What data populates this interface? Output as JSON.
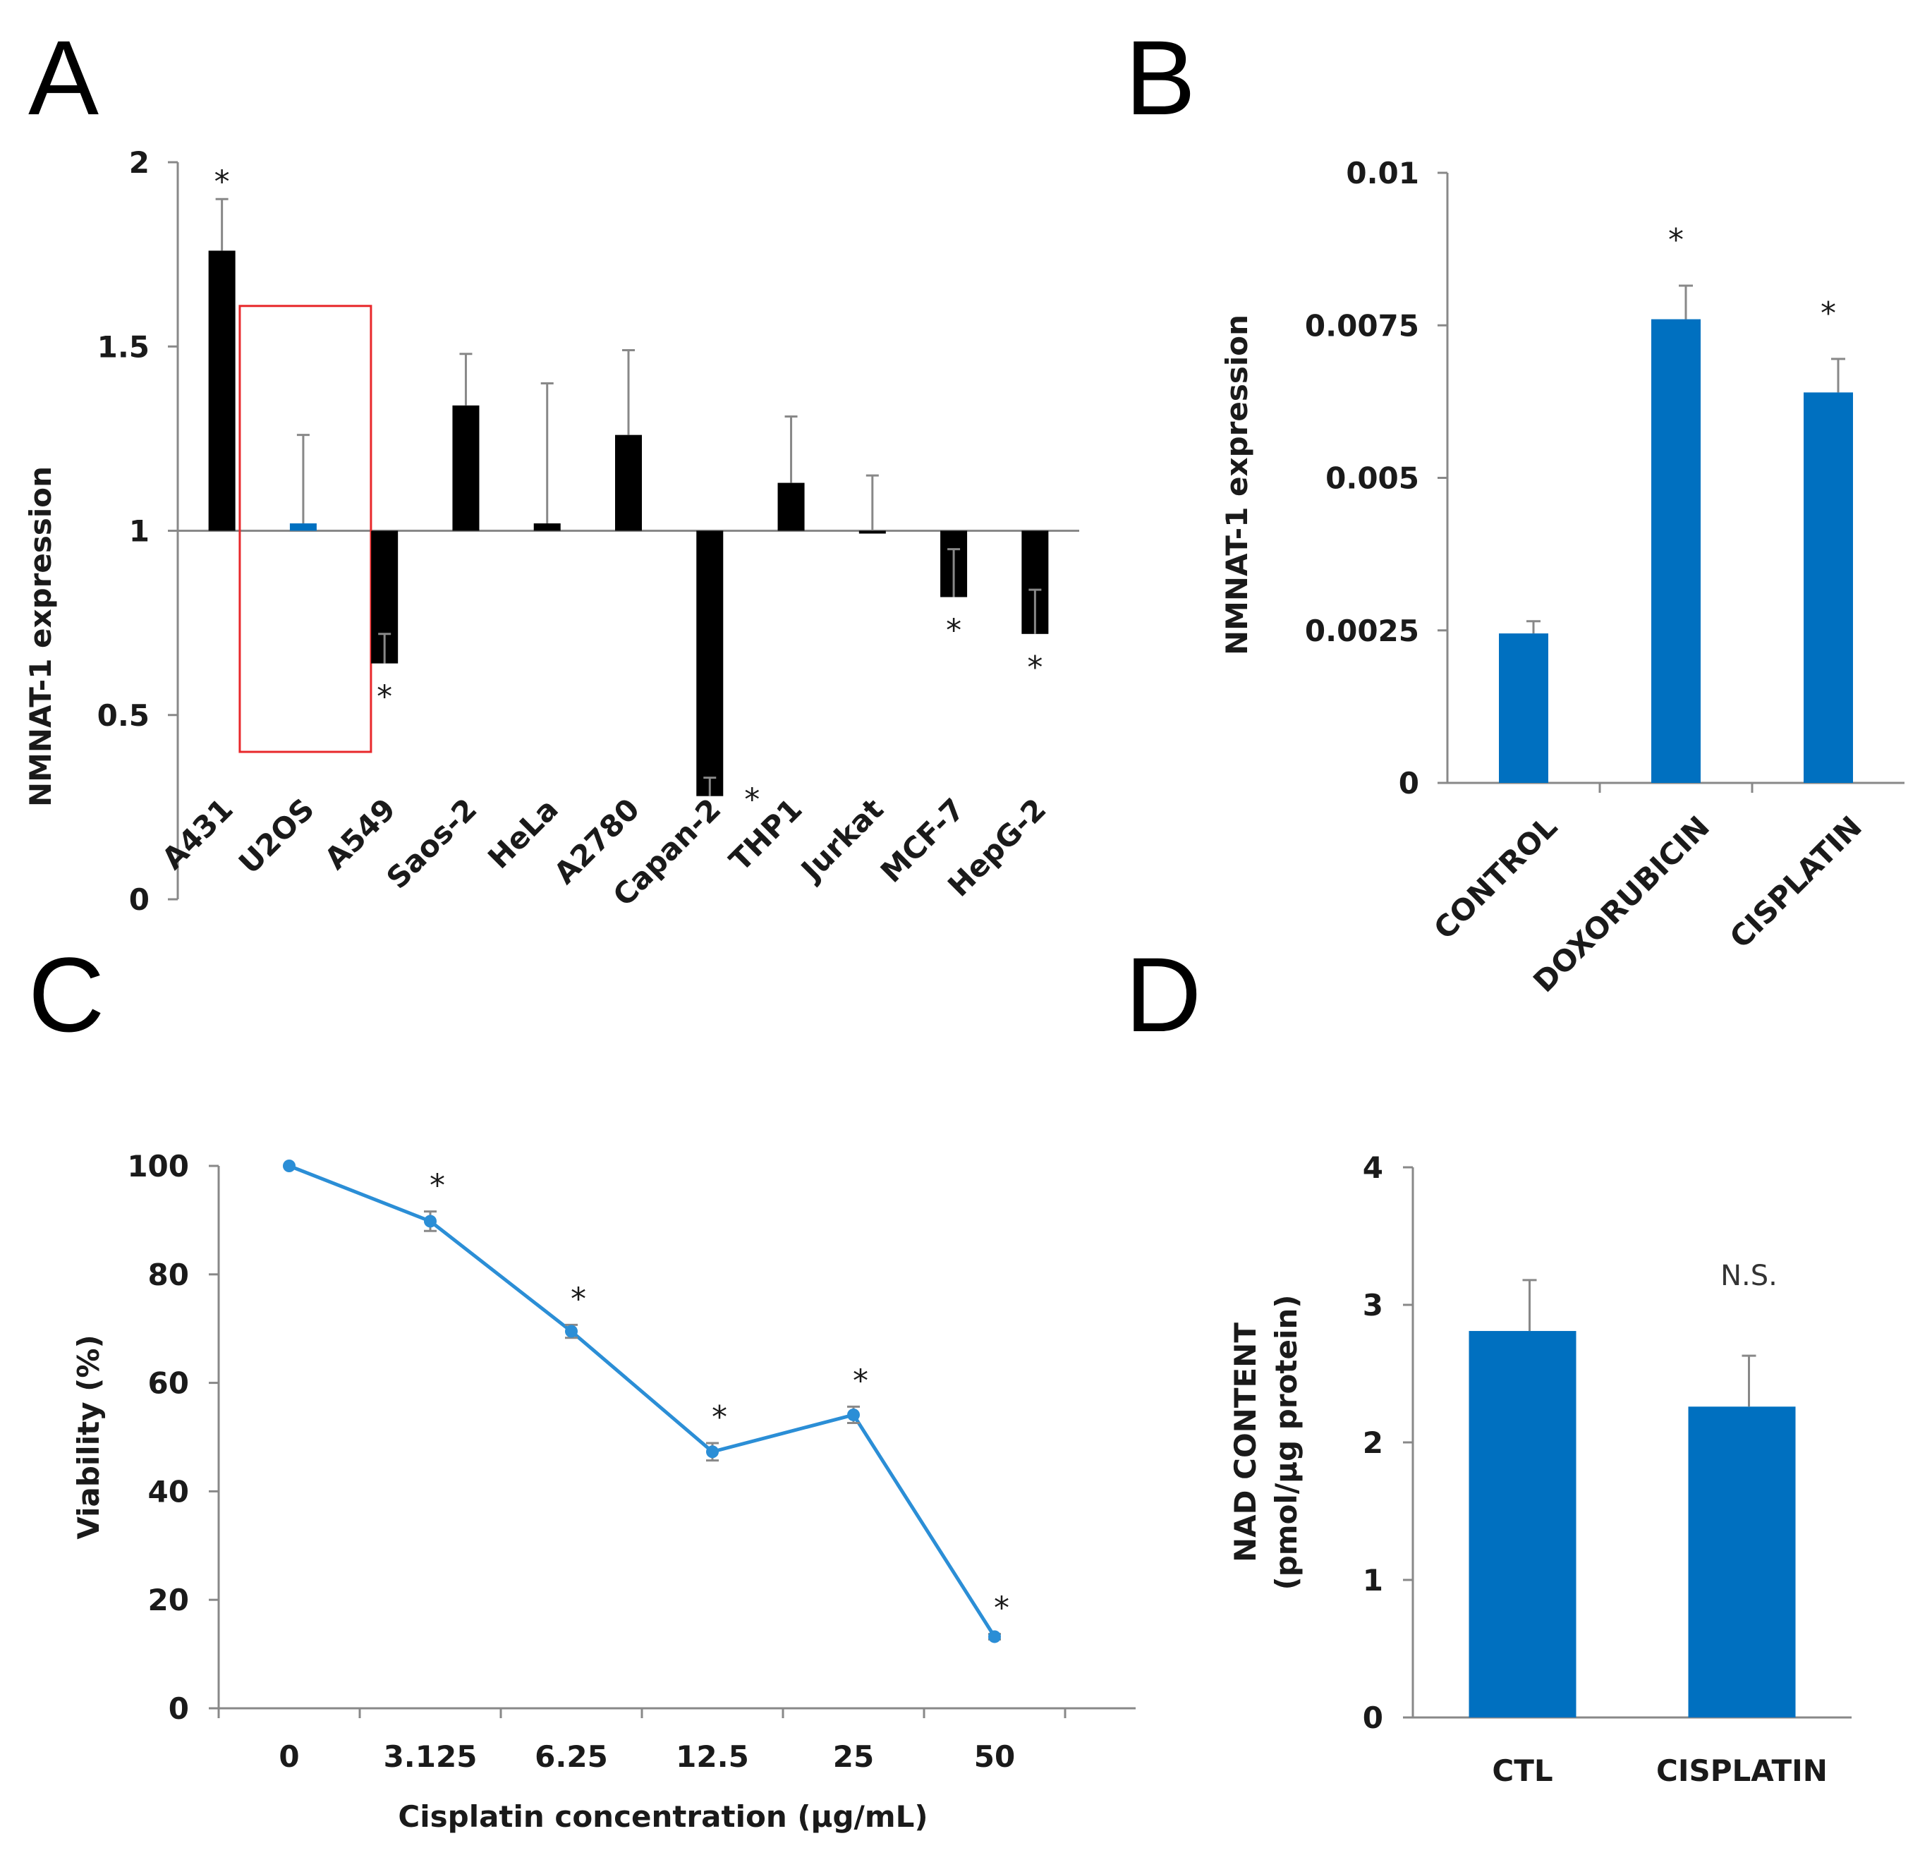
{
  "panels": {
    "A": "A",
    "B": "B",
    "C": "C",
    "D": "D"
  },
  "colors": {
    "black_bar": "#000000",
    "blue": "#0070C0",
    "line_blue": "#2B8ED6",
    "highlight": "#E8282B"
  },
  "chart_data": [
    {
      "id": "A",
      "type": "bar",
      "title": "",
      "ylabel": "NMNAT-1 expression",
      "xlabel": "",
      "ylim": [
        0,
        2
      ],
      "yticks": [
        "0",
        "0.5",
        "1",
        "1.5",
        "2"
      ],
      "baseline": 1,
      "categories": [
        "A431",
        "U2OS",
        "A549",
        "Saos-2",
        "HeLa",
        "A2780",
        "Capan-2",
        "THP1",
        "Jurkat",
        "MCF-7",
        "HepG-2"
      ],
      "values": [
        1.76,
        1.02,
        0.64,
        1.34,
        1.02,
        1.26,
        0.28,
        1.13,
        1.0,
        0.82,
        0.72
      ],
      "errors": [
        0.14,
        0.24,
        0.08,
        0.14,
        0.38,
        0.23,
        0.05,
        0.18,
        0.15,
        0.13,
        0.12
      ],
      "significant": [
        true,
        false,
        true,
        false,
        false,
        false,
        true,
        false,
        false,
        true,
        true
      ],
      "highlighted": "U2OS",
      "star": "*"
    },
    {
      "id": "B",
      "type": "bar",
      "ylabel": "NMNAT-1  expression",
      "ylim": [
        0,
        0.01
      ],
      "yticks": [
        "0",
        "0.0025",
        "0.005",
        "0.0075",
        "0.01"
      ],
      "categories": [
        "CONTROL",
        "DOXORUBICIN",
        "CISPLATIN"
      ],
      "values": [
        0.00245,
        0.0076,
        0.0064
      ],
      "errors": [
        0.0002,
        0.00055,
        0.00055
      ],
      "significant": [
        false,
        true,
        true
      ],
      "star": "*"
    },
    {
      "id": "C",
      "type": "line",
      "ylabel": "Viability (%)",
      "xlabel": "Cisplatin concentration (µg/mL)",
      "ylim": [
        0,
        100
      ],
      "yticks": [
        "0",
        "20",
        "40",
        "60",
        "80",
        "100"
      ],
      "categories": [
        "0",
        "3.125",
        "6.25",
        "12.5",
        "25",
        "50"
      ],
      "values": [
        100,
        89.8,
        69.5,
        47.3,
        54.1,
        13.2
      ],
      "errors": [
        0,
        1.8,
        1.2,
        1.6,
        1.5,
        0.5
      ],
      "significant": [
        false,
        true,
        true,
        true,
        true,
        true
      ],
      "star": "*"
    },
    {
      "id": "D",
      "type": "bar",
      "ylabel_line1": "NAD CONTENT",
      "ylabel_line2": "(pmol/µg protein)",
      "ylim": [
        0,
        4
      ],
      "yticks": [
        "0",
        "1",
        "2",
        "3",
        "4"
      ],
      "categories": [
        "CTL",
        "CISPLATIN"
      ],
      "values": [
        2.81,
        2.26
      ],
      "errors": [
        0.37,
        0.37
      ],
      "annotation": "N.S."
    }
  ]
}
